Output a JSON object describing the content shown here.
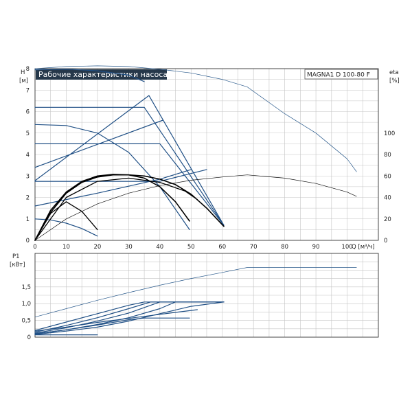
{
  "chart_data": [
    {
      "type": "line",
      "title": "Рабочие характеристики насоса",
      "model": "MAGNA1 D 100-80 F",
      "xlabel": "Q [м³/ч]",
      "ylabel_left": "H",
      "ylabel_left_unit": "[м]",
      "ylabel_right": "eta",
      "ylabel_right_unit": "[%]",
      "xlim": [
        0,
        110
      ],
      "ylim": [
        0,
        8
      ],
      "y2lim": [
        0,
        160
      ],
      "grid": true,
      "x_ticks": [
        "0",
        "10",
        "20",
        "30",
        "40",
        "50",
        "60",
        "70",
        "80",
        "90",
        "100"
      ],
      "y_ticks": [
        "0",
        "1",
        "2",
        "3",
        "4",
        "5",
        "6",
        "7",
        "8"
      ],
      "y2_ticks": [
        "0",
        "20",
        "40",
        "60",
        "80",
        "100"
      ],
      "series": [
        {
          "role": "head",
          "color": "#2a5a8c",
          "width": 0.7,
          "x": [
            0,
            10,
            20,
            30,
            40,
            50,
            60,
            68,
            80,
            90,
            100,
            103
          ],
          "y": [
            8.0,
            8.1,
            8.13,
            8.1,
            7.97,
            7.8,
            7.5,
            7.15,
            5.9,
            5.0,
            3.8,
            3.2
          ]
        },
        {
          "role": "head",
          "color": "#1f4f85",
          "width": 1.2,
          "x": [
            0,
            10,
            20,
            30,
            35
          ],
          "y": [
            7.95,
            7.98,
            7.9,
            7.7,
            7.4
          ]
        },
        {
          "role": "head",
          "color": "#1f4f85",
          "width": 1.2,
          "x": [
            0,
            10,
            20,
            30,
            40,
            49.5
          ],
          "y": [
            5.4,
            5.35,
            5.0,
            4.1,
            2.5,
            0.5
          ]
        },
        {
          "role": "head",
          "color": "#1f4f85",
          "width": 1.2,
          "x": [
            0,
            5,
            10,
            15,
            20
          ],
          "y": [
            1.0,
            0.95,
            0.8,
            0.55,
            0.2
          ]
        },
        {
          "role": "head",
          "color": "#1f4f85",
          "width": 1.2,
          "x": [
            0,
            35,
            60.5
          ],
          "y": [
            6.2,
            6.2,
            0.7
          ]
        },
        {
          "role": "head",
          "color": "#1f4f85",
          "width": 1.2,
          "x": [
            0,
            40,
            60.5
          ],
          "y": [
            4.5,
            4.5,
            0.7
          ]
        },
        {
          "role": "head",
          "color": "#1f4f85",
          "width": 1.2,
          "x": [
            0,
            36.5,
            60.5
          ],
          "y": [
            2.78,
            6.75,
            0.7
          ]
        },
        {
          "role": "head",
          "color": "#1f4f85",
          "width": 1.2,
          "x": [
            0,
            41
          ],
          "y": [
            3.4,
            5.6
          ]
        },
        {
          "role": "head",
          "color": "#1f4f85",
          "width": 1.2,
          "x": [
            0,
            20,
            40,
            50
          ],
          "y": [
            1.6,
            2.2,
            2.85,
            3.3
          ]
        },
        {
          "role": "head",
          "color": "#1f4f85",
          "width": 1.2,
          "x": [
            0,
            40,
            55
          ],
          "y": [
            2.75,
            2.75,
            3.3
          ]
        },
        {
          "role": "eta",
          "color": "#111111",
          "width": 0.7,
          "x": [
            0,
            10,
            20,
            30,
            40,
            50,
            60,
            68,
            80,
            90,
            100,
            103
          ],
          "y": [
            0,
            20,
            34,
            44,
            51,
            56,
            59,
            61,
            58,
            53,
            45,
            41
          ]
        },
        {
          "role": "eta",
          "color": "#000000",
          "width": 1.6,
          "x": [
            0,
            5,
            10,
            15,
            20,
            25,
            30,
            35,
            40,
            45,
            50,
            55,
            60.5
          ],
          "y": [
            0,
            26,
            44,
            54,
            59,
            61,
            61,
            60,
            57,
            52,
            43,
            30,
            13
          ]
        },
        {
          "role": "eta",
          "color": "#000000",
          "width": 1.6,
          "x": [
            0,
            5,
            10,
            15,
            20,
            25,
            30,
            35,
            40,
            45,
            49.5
          ],
          "y": [
            0,
            28,
            45,
            55,
            60,
            61.5,
            61,
            58,
            50,
            36,
            18
          ]
        },
        {
          "role": "eta",
          "color": "#000000",
          "width": 1.3,
          "x": [
            0,
            5,
            10,
            15,
            20
          ],
          "y": [
            0,
            25,
            36,
            27,
            10
          ]
        },
        {
          "role": "eta",
          "color": "#000000",
          "width": 1.3,
          "x": [
            0,
            10,
            20,
            30,
            40,
            48,
            52
          ],
          "y": [
            0,
            40,
            55,
            58,
            54,
            46,
            38
          ]
        }
      ]
    },
    {
      "type": "line",
      "ylabel": "P1",
      "ylabel_unit": "[кВт]",
      "xlim": [
        0,
        110
      ],
      "ylim": [
        0,
        2.5
      ],
      "grid": true,
      "y_ticks": [
        "0",
        "0,5",
        "1,0",
        "1,5"
      ],
      "series": [
        {
          "role": "power",
          "color": "#2a5a8c",
          "width": 0.7,
          "x": [
            0,
            10,
            20,
            30,
            40,
            50,
            60,
            68,
            80,
            90,
            103
          ],
          "y": [
            0.6,
            0.85,
            1.1,
            1.33,
            1.55,
            1.75,
            1.93,
            2.08,
            2.08,
            2.08,
            2.08
          ]
        },
        {
          "role": "power",
          "color": "#1f4f85",
          "width": 1.2,
          "x": [
            0,
            10,
            20,
            30,
            35,
            60.5
          ],
          "y": [
            0.2,
            0.45,
            0.7,
            0.95,
            1.05,
            1.05
          ]
        },
        {
          "role": "power",
          "color": "#1f4f85",
          "width": 1.2,
          "x": [
            0,
            10,
            20,
            30,
            37,
            60.5
          ],
          "y": [
            0.15,
            0.35,
            0.58,
            0.85,
            1.05,
            1.05
          ]
        },
        {
          "role": "power",
          "color": "#1f4f85",
          "width": 1.2,
          "x": [
            0,
            10,
            20,
            30,
            40,
            60.5
          ],
          "y": [
            0.12,
            0.28,
            0.48,
            0.72,
            1.05,
            1.05
          ]
        },
        {
          "role": "power",
          "color": "#1f4f85",
          "width": 1.2,
          "x": [
            0,
            10,
            20,
            30,
            40,
            45,
            60.5
          ],
          "y": [
            0.1,
            0.22,
            0.38,
            0.58,
            0.85,
            1.05,
            1.05
          ]
        },
        {
          "role": "power",
          "color": "#1f4f85",
          "width": 1.2,
          "x": [
            0,
            10,
            20,
            30,
            40,
            50,
            60.5
          ],
          "y": [
            0.08,
            0.18,
            0.3,
            0.48,
            0.7,
            0.92,
            1.05
          ]
        },
        {
          "role": "power",
          "color": "#1f4f85",
          "width": 1.2,
          "x": [
            0,
            10,
            20,
            30,
            35,
            49.5
          ],
          "y": [
            0.1,
            0.22,
            0.36,
            0.52,
            0.57,
            0.57
          ]
        },
        {
          "role": "power",
          "color": "#1f4f85",
          "width": 1.2,
          "x": [
            0,
            10,
            20,
            30,
            40,
            52
          ],
          "y": [
            0.18,
            0.3,
            0.44,
            0.56,
            0.68,
            0.82
          ]
        },
        {
          "role": "power",
          "color": "#1f4f85",
          "width": 1.2,
          "x": [
            0,
            20
          ],
          "y": [
            0.07,
            0.07
          ]
        }
      ]
    }
  ]
}
